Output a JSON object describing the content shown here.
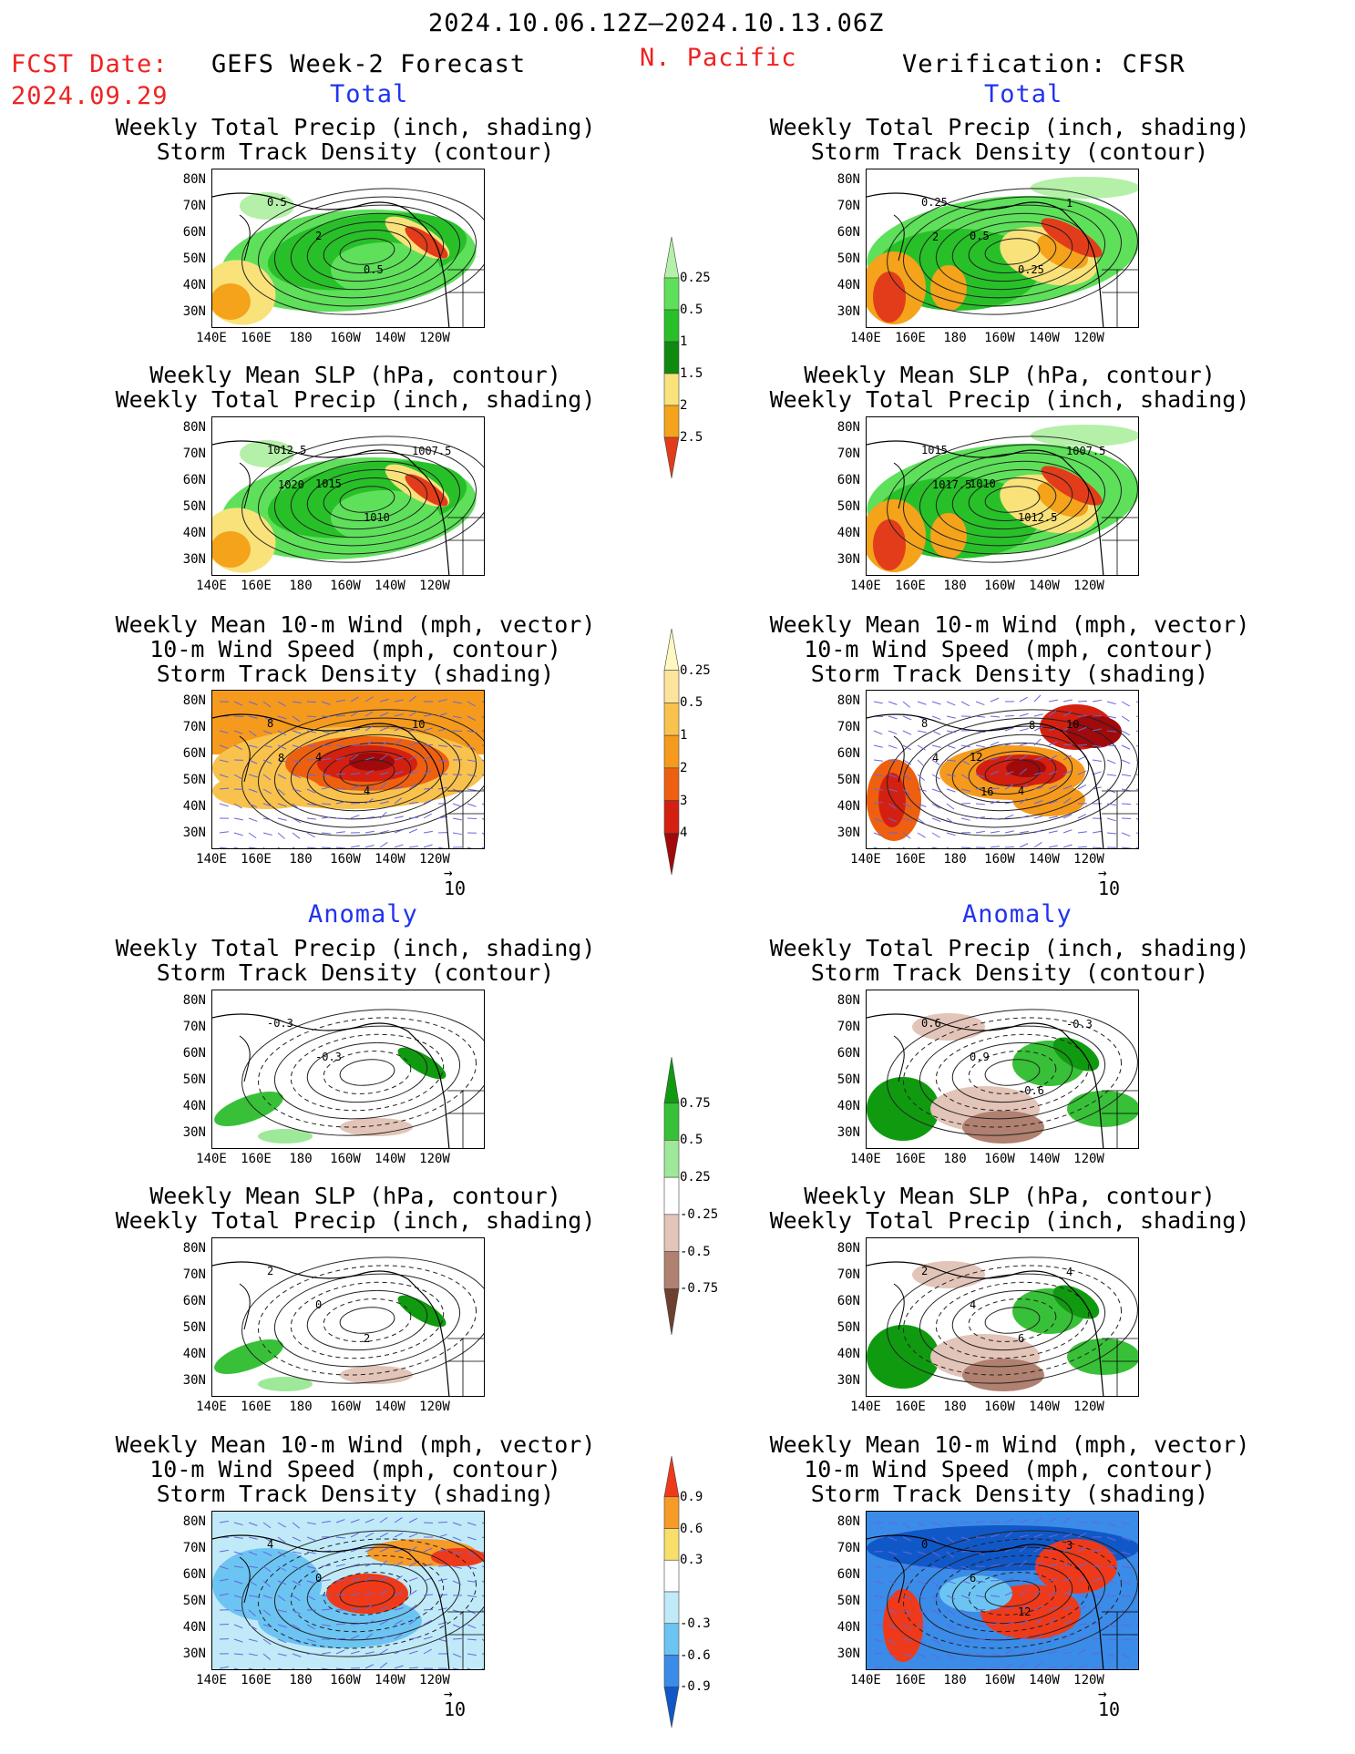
{
  "header": {
    "date_range": "2024.10.06.12Z–2024.10.13.06Z",
    "fcst_label": "FCST Date:",
    "fcst_date": "2024.09.29",
    "left_title": "GEFS Week-2 Forecast",
    "region": "N. Pacific",
    "right_title": "Verification: CFSR"
  },
  "sections": {
    "total": "Total",
    "anomaly": "Anomaly"
  },
  "panel_titles": {
    "precip_track": [
      "Weekly Total Precip (inch, shading)",
      "Storm Track Density (contour)"
    ],
    "slp_precip": [
      "Weekly Mean SLP (hPa, contour)",
      "Weekly Total Precip (inch, shading)"
    ],
    "wind_track": [
      "Weekly Mean 10-m Wind (mph, vector)",
      "10-m Wind Speed (mph, contour)",
      "Storm Track Density (shading)"
    ]
  },
  "axes": {
    "lat_labels": [
      "80N",
      "70N",
      "60N",
      "50N",
      "40N",
      "30N"
    ],
    "lon_labels": [
      "140E",
      "160E",
      "180",
      "160W",
      "140W",
      "120W"
    ]
  },
  "vector_ref": "10",
  "colorbars": [
    {
      "id": "precip_total",
      "levels": [
        "0.25",
        "0.5",
        "1",
        "1.5",
        "2",
        "2.5"
      ],
      "colors": [
        "#b4f0a8",
        "#5ee05a",
        "#28c028",
        "#0f8a0f",
        "#f9e27a",
        "#f4a31a",
        "#e23c1a"
      ]
    },
    {
      "id": "track_total",
      "levels": [
        "0.25",
        "0.5",
        "1",
        "2",
        "3",
        "4"
      ],
      "colors": [
        "#fff8c0",
        "#fde49c",
        "#f9c24c",
        "#f59a1c",
        "#ee6010",
        "#d42010",
        "#a00a0a"
      ]
    },
    {
      "id": "precip_anom",
      "levels": [
        "0.75",
        "0.5",
        "0.25",
        "-0.25",
        "-0.5",
        "-0.75"
      ],
      "colors": [
        "#109a10",
        "#38c038",
        "#9ee89a",
        "#ffffff",
        "#e2c4b8",
        "#b08070",
        "#6e4030"
      ]
    },
    {
      "id": "track_anom",
      "levels": [
        "0.9",
        "0.6",
        "0.3",
        "-0.3",
        "-0.6",
        "-0.9"
      ],
      "colors": [
        "#ee3a1a",
        "#f69a28",
        "#f9df6a",
        "#ffffff",
        "#c0eaf8",
        "#6cc4f2",
        "#3a8ce8",
        "#1058c8"
      ]
    }
  ],
  "chart_data": [
    {
      "panel": "GEFS total precip / storm track",
      "type": "heatmap",
      "contour_labels": [
        "0.5",
        "2",
        "0.5"
      ]
    },
    {
      "panel": "CFSR total precip / storm track",
      "type": "heatmap",
      "contour_labels": [
        "0.25",
        "0.5",
        "0.25",
        "1",
        "2"
      ]
    },
    {
      "panel": "GEFS total SLP / precip",
      "type": "heatmap",
      "contour_labels": [
        "1012.5",
        "1015",
        "1010",
        "1007.5",
        "1020"
      ]
    },
    {
      "panel": "CFSR total SLP / precip",
      "type": "heatmap",
      "contour_labels": [
        "1015",
        "1010",
        "1012.5",
        "1007.5",
        "1017.5"
      ]
    },
    {
      "panel": "GEFS total wind / track density",
      "type": "heatmap",
      "contour_labels": [
        "8",
        "4",
        "4",
        "10",
        "8"
      ]
    },
    {
      "panel": "CFSR total wind / track density",
      "type": "heatmap",
      "contour_labels": [
        "8",
        "12",
        "4",
        "10",
        "4",
        "16",
        "8"
      ]
    },
    {
      "panel": "GEFS anomaly precip / storm track",
      "type": "heatmap",
      "contour_labels": [
        "-0.3",
        "-0.3"
      ]
    },
    {
      "panel": "CFSR anomaly precip / storm track",
      "type": "heatmap",
      "contour_labels": [
        "0.6",
        "0.9",
        "-0.6",
        "-0.3"
      ]
    },
    {
      "panel": "GEFS anomaly SLP / precip",
      "type": "heatmap",
      "contour_labels": [
        "2",
        "0",
        "2"
      ]
    },
    {
      "panel": "CFSR anomaly SLP / precip",
      "type": "heatmap",
      "contour_labels": [
        "2",
        "4",
        "6",
        "4"
      ]
    },
    {
      "panel": "GEFS anomaly wind / track density",
      "type": "heatmap",
      "contour_labels": [
        "4",
        "0"
      ]
    },
    {
      "panel": "CFSR anomaly wind / track density",
      "type": "heatmap",
      "contour_labels": [
        "0",
        "6",
        "12",
        "3"
      ]
    }
  ]
}
